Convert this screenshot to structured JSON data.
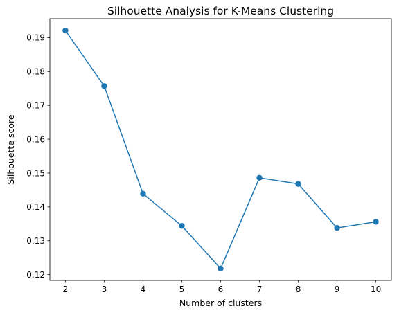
{
  "chart_data": {
    "type": "line",
    "title": "Silhouette Analysis for K-Means Clustering",
    "xlabel": "Number of clusters",
    "ylabel": "Silhouette score",
    "x": [
      2,
      3,
      4,
      5,
      6,
      7,
      8,
      9,
      10
    ],
    "series": [
      {
        "values": [
          0.1921,
          0.1757,
          0.1439,
          0.1344,
          0.1218,
          0.1486,
          0.1468,
          0.1338,
          0.1356
        ],
        "color": "#1f77b4",
        "marker": "circle"
      }
    ],
    "xticks": [
      "2",
      "3",
      "4",
      "5",
      "6",
      "7",
      "8",
      "9",
      "10"
    ],
    "yticks": [
      "0.12",
      "0.13",
      "0.14",
      "0.15",
      "0.16",
      "0.17",
      "0.18",
      "0.19"
    ],
    "xlim": [
      1.6,
      10.4
    ],
    "ylim": [
      0.1183,
      0.1956
    ],
    "grid": false,
    "legend": false
  }
}
